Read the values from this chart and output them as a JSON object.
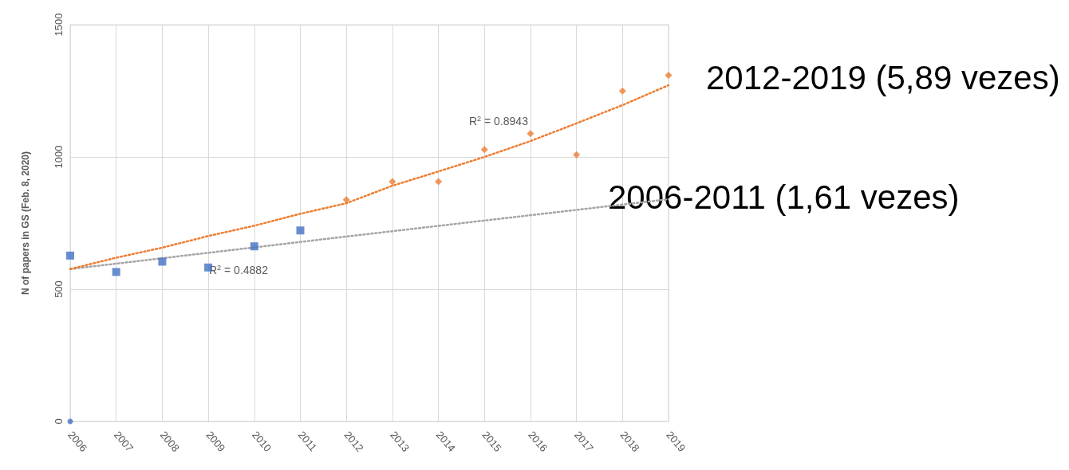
{
  "chart_data": {
    "type": "scatter",
    "ylabel": "N of papers in GS (Feb. 8, 2020)",
    "xlim": [
      2006,
      2019
    ],
    "xticks": [
      2006,
      2007,
      2008,
      2009,
      2010,
      2011,
      2012,
      2013,
      2014,
      2015,
      2016,
      2017,
      2018,
      2019
    ],
    "ylim": [
      0,
      1500
    ],
    "yticks": [
      0,
      500,
      1000,
      1500
    ],
    "grid": true,
    "series": [
      {
        "marker": "square",
        "color": "#4472c4",
        "x": [
          2006,
          2007,
          2008,
          2009,
          2010,
          2011
        ],
        "values": [
          627,
          565,
          604,
          582,
          662,
          722
        ]
      },
      {
        "marker": "diamond",
        "color": "#ed7d31",
        "x": [
          2012,
          2013,
          2014,
          2015,
          2016,
          2017,
          2018,
          2019
        ],
        "values": [
          838,
          907,
          907,
          1028,
          1088,
          1008,
          1249,
          1309
        ]
      },
      {
        "marker": "circle",
        "color": "#4472c4",
        "x": [
          2006
        ],
        "values": [
          0
        ]
      },
      {
        "type": "line",
        "line_style": "dotted",
        "marker": "none",
        "color": "#a5a5a5",
        "x": [
          2006,
          2012,
          2019
        ],
        "values": [
          576,
          699,
          840
        ]
      },
      {
        "type": "line",
        "line_style": "dotted",
        "marker": "none",
        "color": "#ed7d31",
        "x": [
          2006,
          2007,
          2008,
          2009,
          2010,
          2011,
          2012,
          2013,
          2014,
          2015,
          2016,
          2017,
          2018,
          2019
        ],
        "values": [
          576,
          619,
          657,
          701,
          740,
          785,
          825,
          891,
          945,
          1000,
          1060,
          1127,
          1196,
          1271
        ]
      }
    ],
    "annotations": [
      "R$^{2}$ = 0.4882",
      "R$^{2}$ = 0.8943",
      "2012-2019 (5,89 vezes)",
      "2006-2011 (1,61 vezes)"
    ]
  }
}
